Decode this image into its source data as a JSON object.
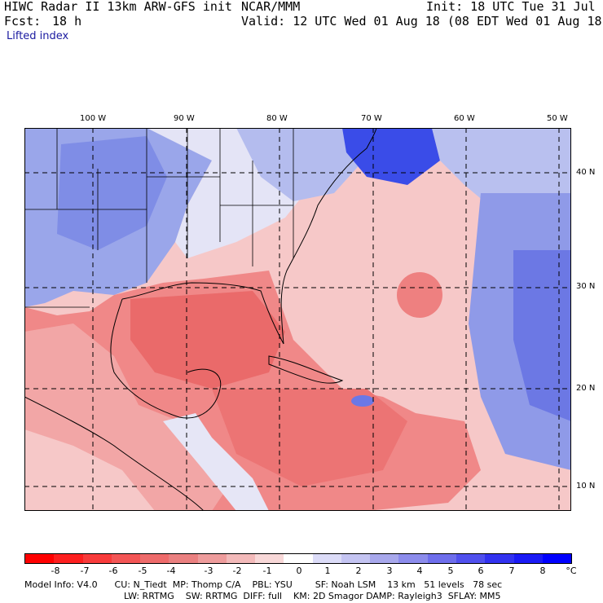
{
  "header": {
    "model": "HIWC Radar II 13km ARW-GFS init",
    "org": "NCAR/MMM",
    "init": "Init: 18 UTC Tue 31 Jul 18",
    "fcst_label": "Fcst:",
    "fcst_value": "18 h",
    "valid": "Valid: 12 UTC Wed 01 Aug 18 (08 EDT Wed 01 Aug 18)",
    "field": "Lifted index"
  },
  "axes": {
    "longitudes": [
      "100 W",
      "90 W",
      "80 W",
      "70 W",
      "60 W",
      "50 W"
    ],
    "latitudes": [
      "40 N",
      "30 N",
      "20 N",
      "10 N"
    ]
  },
  "colorbar": {
    "ticks": [
      "-8",
      "-7",
      "-6",
      "-5",
      "-4",
      "-3",
      "-2",
      "-1",
      "0",
      "1",
      "2",
      "3",
      "4",
      "5",
      "6",
      "7",
      "8"
    ],
    "unit": "°C",
    "colors": [
      "#ff0000",
      "#fd1f1f",
      "#f83b3b",
      "#f35555",
      "#ee6b6b",
      "#ea8080",
      "#ee9c9c",
      "#f3baba",
      "#f8d8d8",
      "#ffffff",
      "#dcdcf8",
      "#c4c4f2",
      "#a8a8ec",
      "#8c8cec",
      "#6e6eec",
      "#5050ee",
      "#3232f0",
      "#1a1af5",
      "#0000ff"
    ]
  },
  "footer": {
    "line1": "Model Info: V4.0      CU: N_Tiedt  MP: Thomp C/A    PBL: YSU        SF: Noah LSM    13 km   51 levels   78 sec",
    "line2": "LW: RRTMG    SW: RRTMG  DIFF: full    KM: 2D Smagor DAMP: Rayleigh3  SFLAY: MM5"
  }
}
